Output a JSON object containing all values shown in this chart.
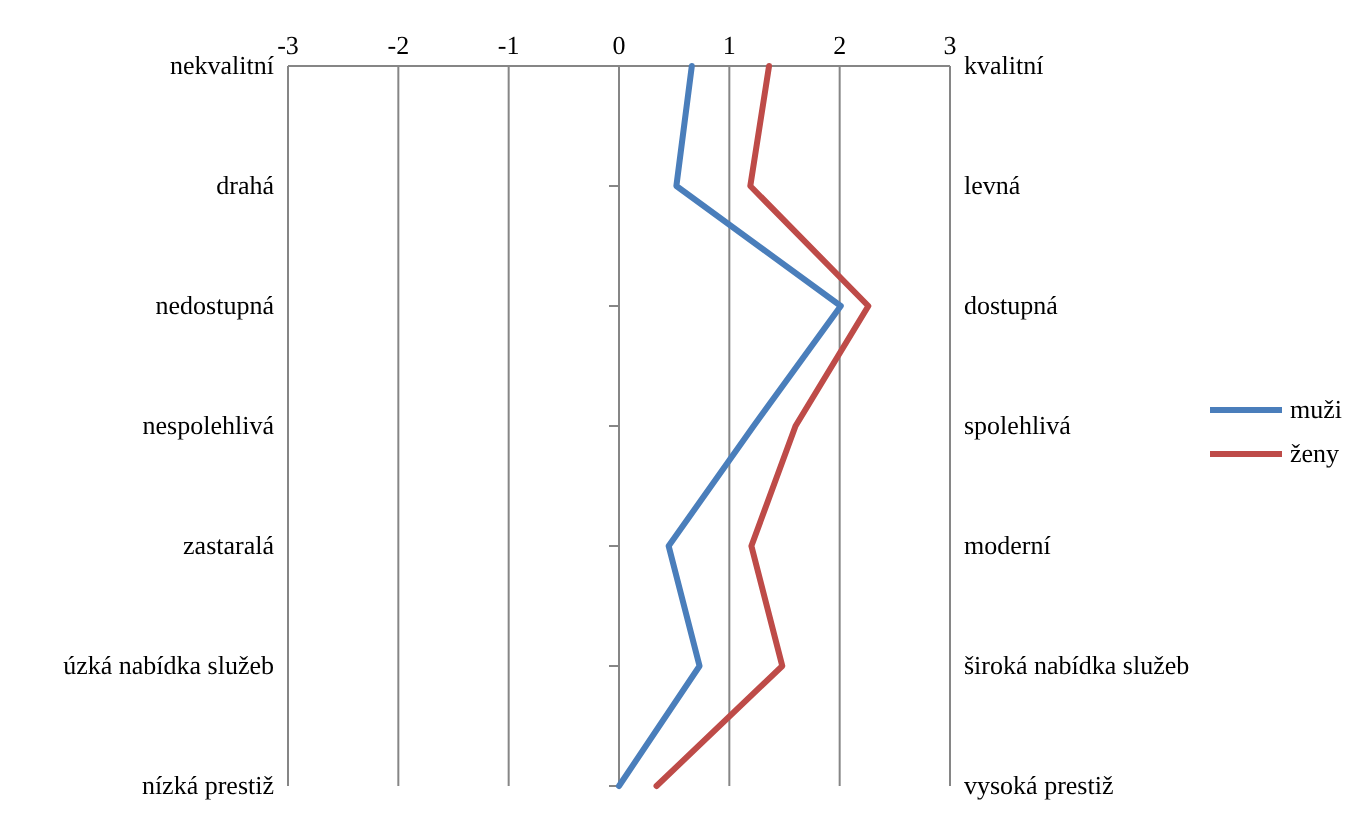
{
  "chart_data": {
    "type": "line",
    "orientation": "horizontal",
    "categories": [
      "nekvalitní",
      "drahá",
      "nedostupná",
      "nespolehlivá",
      "zastaralá",
      "úzká nabídka služeb",
      "nízká prestiž"
    ],
    "y2_categories": [
      "kvalitní",
      "levná",
      "dostupná",
      "spolehlivá",
      "moderní",
      "široká nabídka služeb",
      "vysoká prestiž"
    ],
    "series": [
      {
        "name": "muži",
        "color": "#4a7ebb",
        "values": [
          0.66,
          0.52,
          2.01,
          1.22,
          0.45,
          0.73,
          0
        ]
      },
      {
        "name": "ženy",
        "color": "#be4b48",
        "values": [
          1.36,
          1.19,
          2.26,
          1.6,
          1.2,
          1.48,
          0.34
        ]
      }
    ],
    "xlim": [
      -3,
      3
    ],
    "xticks": [
      -3,
      -2,
      -1,
      0,
      1,
      2,
      3
    ],
    "grid": "x",
    "legend": "right",
    "marker": "none",
    "line_style": "solid"
  }
}
